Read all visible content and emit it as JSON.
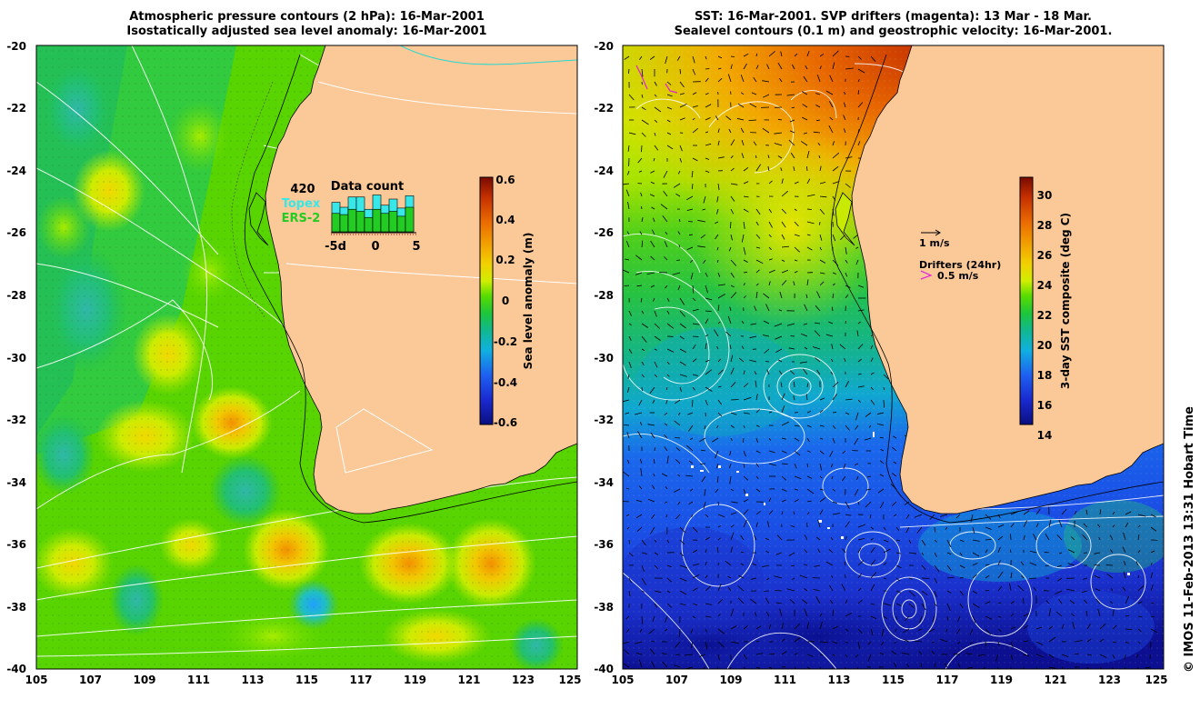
{
  "left_panel": {
    "title_line1": "Atmospheric pressure contours (2 hPa): 16-Mar-2001",
    "title_line2": "Isostatically adjusted sea level anomaly: 16-Mar-2001",
    "x_ticks": [
      "105",
      "107",
      "109",
      "111",
      "113",
      "115",
      "117",
      "119",
      "121",
      "123",
      "125"
    ],
    "y_ticks": [
      "-20",
      "-22",
      "-24",
      "-26",
      "-28",
      "-30",
      "-32",
      "-34",
      "-36",
      "-38",
      "-40"
    ],
    "colorbar": {
      "label": "Sea level anomaly (m)",
      "ticks": [
        "0.6",
        "0.4",
        "0.2",
        "0",
        "-0.2",
        "-0.4",
        "-0.6"
      ],
      "colors": [
        "#7a0a00",
        "#c53000",
        "#ea6a00",
        "#f2a000",
        "#f2d000",
        "#d9ee00",
        "#8ee600",
        "#2fd21a",
        "#12b84a",
        "#10b8a0",
        "#10a0e0",
        "#1e60f0",
        "#1a2ad0",
        "#0a0f80"
      ]
    },
    "inset": {
      "count": "420",
      "topex": "Topex",
      "ers2": "ERS-2",
      "title": "Data count",
      "x_labels": [
        "-5d",
        "0",
        "5"
      ],
      "bars": [
        {
          "total": 0.72,
          "ers": 0.45
        },
        {
          "total": 0.6,
          "ers": 0.42
        },
        {
          "total": 0.85,
          "ers": 0.55
        },
        {
          "total": 0.85,
          "ers": 0.5
        },
        {
          "total": 0.55,
          "ers": 0.35
        },
        {
          "total": 0.9,
          "ers": 0.55
        },
        {
          "total": 0.65,
          "ers": 0.45
        },
        {
          "total": 0.8,
          "ers": 0.5
        },
        {
          "total": 0.58,
          "ers": 0.38
        },
        {
          "total": 0.88,
          "ers": 0.6
        }
      ],
      "colors": {
        "topex": "#38e8e8",
        "ers": "#22cc22"
      }
    }
  },
  "right_panel": {
    "title_line1": "SST: 16-Mar-2001. SVP drifters (magenta): 13 Mar - 18 Mar.",
    "title_line2": "Sealevel contours (0.1 m) and geostrophic velocity: 16-Mar-2001.",
    "x_ticks": [
      "105",
      "107",
      "109",
      "111",
      "113",
      "115",
      "117",
      "119",
      "121",
      "123",
      "125"
    ],
    "y_ticks": [
      "-20",
      "-22",
      "-24",
      "-26",
      "-28",
      "-30",
      "-32",
      "-34",
      "-36",
      "-38",
      "-40"
    ],
    "colorbar": {
      "label": "3-day SST composite (deg C)",
      "ticks": [
        "30",
        "28",
        "26",
        "24",
        "22",
        "20",
        "18",
        "16",
        "14"
      ],
      "colors": [
        "#7a0a00",
        "#c53000",
        "#ea6a00",
        "#f2a000",
        "#f2d000",
        "#d9ee00",
        "#8ee600",
        "#2fd21a",
        "#12b84a",
        "#10b8a0",
        "#10a0e0",
        "#1e60f0",
        "#1a2ad0",
        "#0a0f80"
      ]
    },
    "legend": {
      "velocity": "1 m/s",
      "drifters": "Drifters (24hr)",
      "drifter_speed": "0.5 m/s"
    }
  },
  "colors": {
    "land": "#fbc898",
    "coast": "#000000",
    "contour": "#ffffff",
    "drifter": "#e020e0",
    "topex": "#38e8e8",
    "ers": "#22cc22"
  },
  "credit": "© IMOS 11-Feb-2013 13:31 Hobart Time"
}
